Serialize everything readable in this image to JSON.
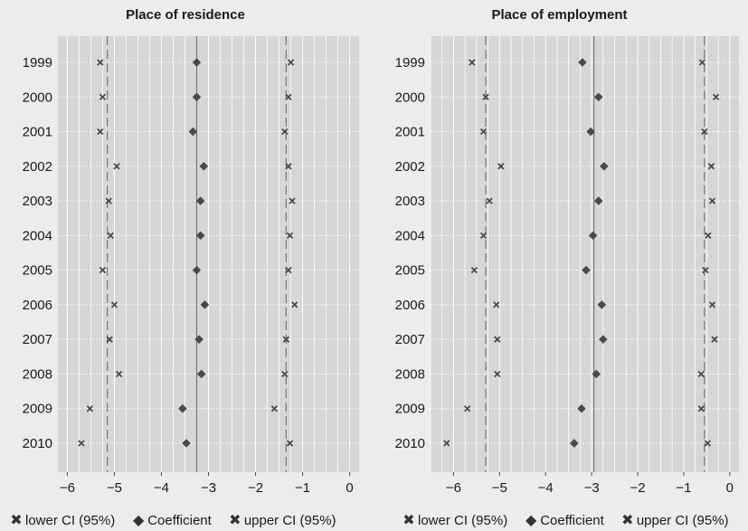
{
  "chart_data": [
    {
      "type": "scatter",
      "title": "Place of residence",
      "categories": [
        "1999",
        "2000",
        "2001",
        "2002",
        "2003",
        "2004",
        "2005",
        "2006",
        "2007",
        "2008",
        "2009",
        "2010"
      ],
      "xlim": [
        -6.2,
        0.2
      ],
      "xticks": [
        -6,
        -5,
        -4,
        -3,
        -2,
        -1,
        0
      ],
      "grid": true,
      "series": [
        {
          "name": "lower CI (95%)",
          "marker": "x",
          "values": [
            -5.3,
            -5.25,
            -5.3,
            -4.95,
            -5.12,
            -5.08,
            -5.25,
            -5.0,
            -5.1,
            -4.9,
            -5.52,
            -5.7
          ]
        },
        {
          "name": "Coefficient",
          "marker": "diamond",
          "values": [
            -3.25,
            -3.25,
            -3.33,
            -3.1,
            -3.17,
            -3.17,
            -3.25,
            -3.08,
            -3.2,
            -3.15,
            -3.55,
            -3.47
          ]
        },
        {
          "name": "upper CI (95%)",
          "marker": "x",
          "values": [
            -1.25,
            -1.3,
            -1.38,
            -1.3,
            -1.22,
            -1.27,
            -1.3,
            -1.17,
            -1.35,
            -1.38,
            -1.6,
            -1.27
          ]
        }
      ],
      "reference_lines": {
        "solid": -3.25,
        "dashed": [
          -5.15,
          -1.35
        ]
      }
    },
    {
      "type": "scatter",
      "title": "Place of employment",
      "categories": [
        "1999",
        "2000",
        "2001",
        "2002",
        "2003",
        "2004",
        "2005",
        "2006",
        "2007",
        "2008",
        "2009",
        "2010"
      ],
      "xlim": [
        -6.5,
        0.2
      ],
      "xticks": [
        -6,
        -5,
        -4,
        -3,
        -2,
        -1,
        0
      ],
      "grid": true,
      "series": [
        {
          "name": "lower CI (95%)",
          "marker": "x",
          "values": [
            -5.6,
            -5.3,
            -5.35,
            -4.97,
            -5.22,
            -5.35,
            -5.55,
            -5.07,
            -5.05,
            -5.05,
            -5.7,
            -6.15
          ]
        },
        {
          "name": "Coefficient",
          "marker": "diamond",
          "values": [
            -3.2,
            -2.85,
            -3.02,
            -2.73,
            -2.85,
            -2.97,
            -3.12,
            -2.78,
            -2.75,
            -2.9,
            -3.22,
            -3.38
          ]
        },
        {
          "name": "upper CI (95%)",
          "marker": "x",
          "values": [
            -0.6,
            -0.3,
            -0.55,
            -0.4,
            -0.38,
            -0.47,
            -0.53,
            -0.38,
            -0.33,
            -0.62,
            -0.62,
            -0.48
          ]
        }
      ],
      "reference_lines": {
        "solid": -2.95,
        "dashed": [
          -5.3,
          -0.55
        ]
      }
    }
  ],
  "legend": [
    {
      "label": "lower CI (95%)",
      "icon": "x-mark-icon"
    },
    {
      "label": "Coefficient",
      "icon": "diamond-icon"
    },
    {
      "label": "upper CI (95%)",
      "icon": "x-mark-icon"
    }
  ],
  "colors": {
    "plot_bg": "#d6d6d6",
    "page_bg": "#ececec",
    "marker": "#4a4a4a",
    "grid": "#ffffff",
    "reference": "#777777"
  }
}
